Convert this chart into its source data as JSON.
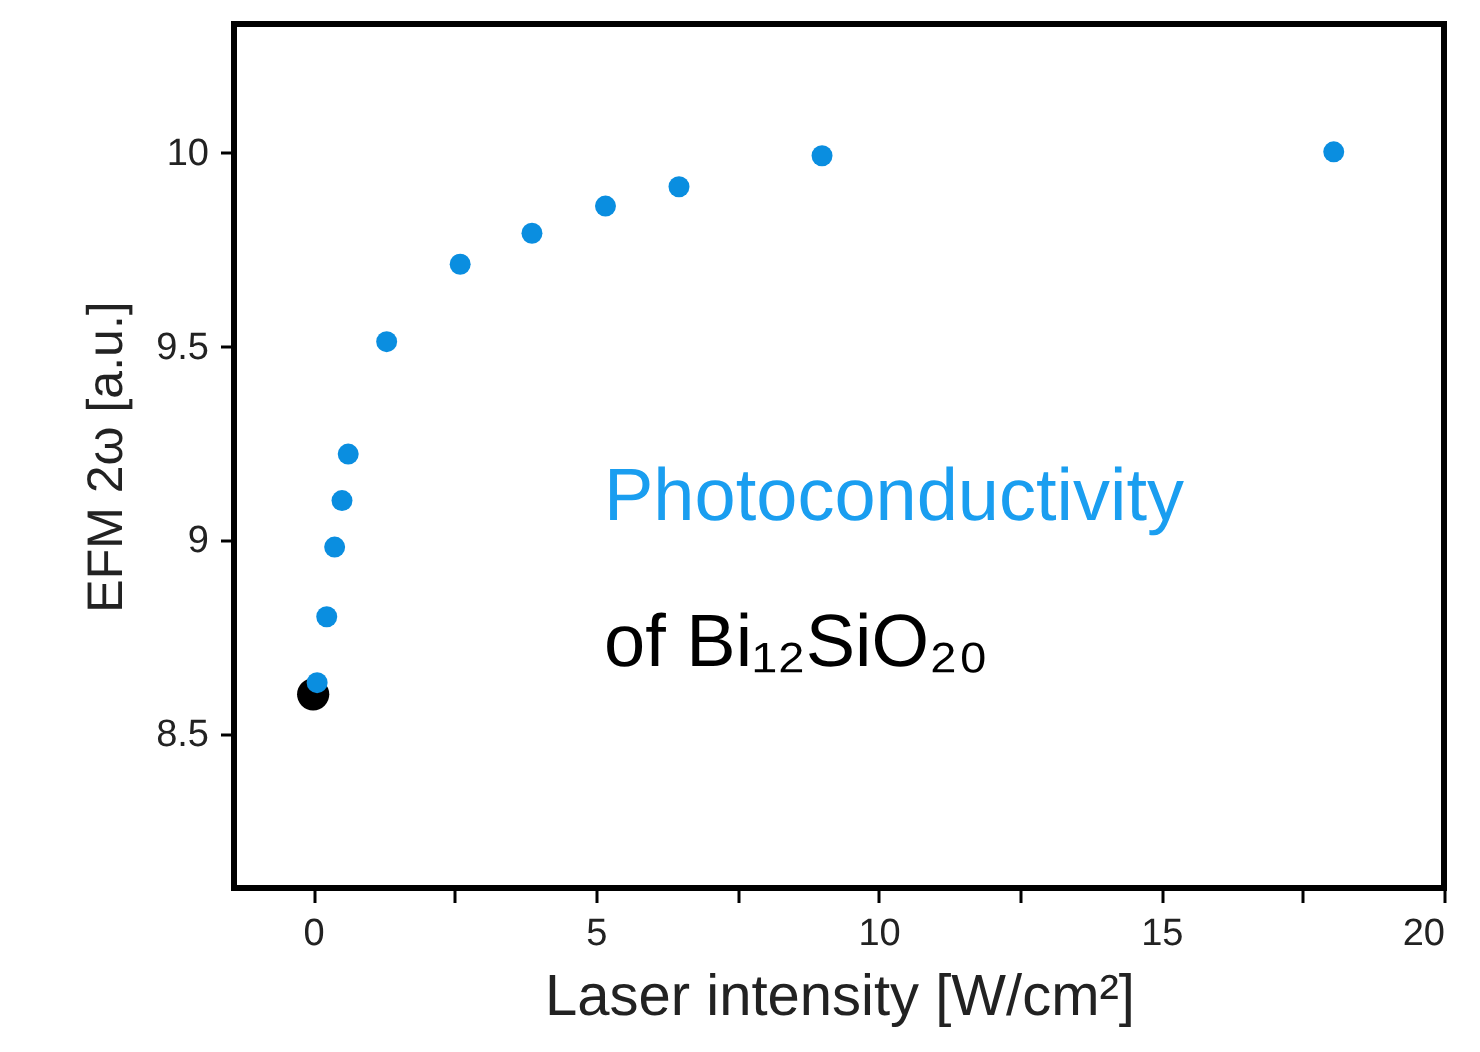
{
  "chart_data": {
    "type": "scatter",
    "xlabel": "Laser intensity [W/cm²]",
    "ylabel": "EFM 2ω [a.u.]",
    "annotations": [
      "Photoconductivity",
      "of Bi₁₂SiO₂₀"
    ],
    "xlim": [
      -1.4,
      20
    ],
    "xticks": [
      0,
      {
        "value": 2.5,
        "label": null
      },
      5,
      {
        "value": 7.5,
        "label": null
      },
      10,
      {
        "value": 12.5,
        "label": null
      },
      15,
      {
        "value": 17.5,
        "label": null
      },
      20
    ],
    "ylim": [
      8.1,
      10.33
    ],
    "yticks": [
      8.5,
      9,
      9.5,
      10
    ],
    "marker": "circle",
    "grid": false,
    "series": [
      {
        "color": "#000000",
        "x": [
          0
        ],
        "values": [
          8.6
        ]
      },
      {
        "color": "#0a8ee0",
        "x": [
          0.07,
          0.24,
          0.38,
          0.51,
          0.62,
          1.3,
          2.6,
          3.87,
          5.17,
          6.47,
          9.0,
          18.05
        ],
        "values": [
          8.63,
          8.8,
          8.98,
          9.1,
          9.22,
          9.51,
          9.71,
          9.79,
          9.86,
          9.91,
          9.99,
          10.0
        ]
      }
    ]
  }
}
